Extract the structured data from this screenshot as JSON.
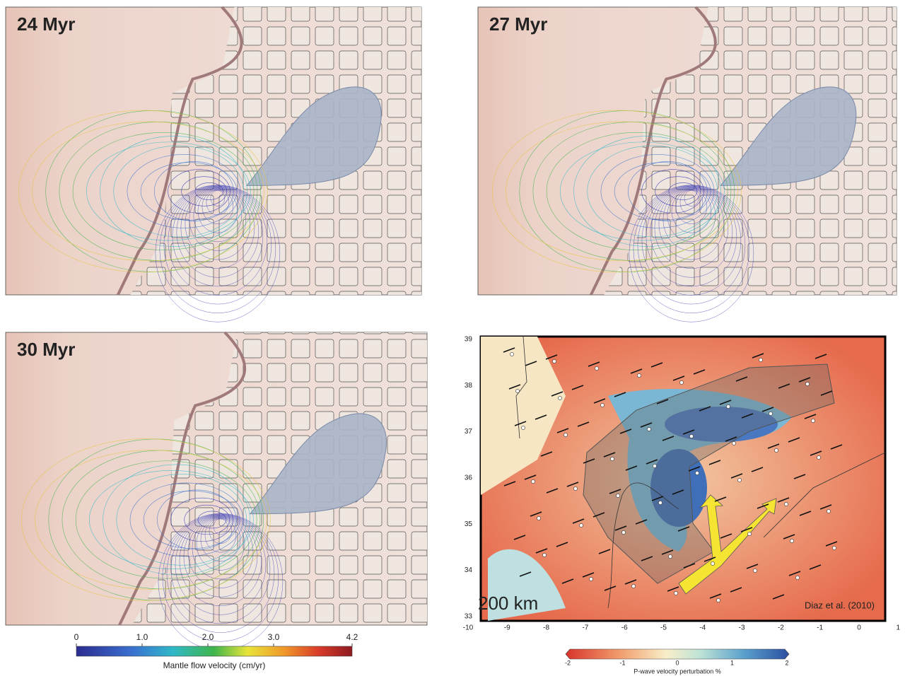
{
  "panels": [
    {
      "label": "24 Myr"
    },
    {
      "label": "27 Myr"
    },
    {
      "label": "30 Myr"
    }
  ],
  "map": {
    "scale_label": "200 km",
    "source": "Diaz et al. (2010)",
    "lat_ticks": [
      "39",
      "38",
      "37",
      "36",
      "35",
      "34",
      "33"
    ],
    "lon_ticks": [
      "-10",
      "-9",
      "-8",
      "-7",
      "-6",
      "-5",
      "-4",
      "-3",
      "-2",
      "-1",
      "0",
      "1"
    ]
  },
  "velocity_colorbar": {
    "ticks": [
      "0",
      "1.0",
      "2.0",
      "3.0",
      "4.2"
    ],
    "label": "Mantle flow velocity (cm/yr)"
  },
  "perturbation_colorbar": {
    "ticks": [
      "-2",
      "-1",
      "0",
      "1",
      "2"
    ],
    "label": "P-wave velocity perturbation %"
  }
}
